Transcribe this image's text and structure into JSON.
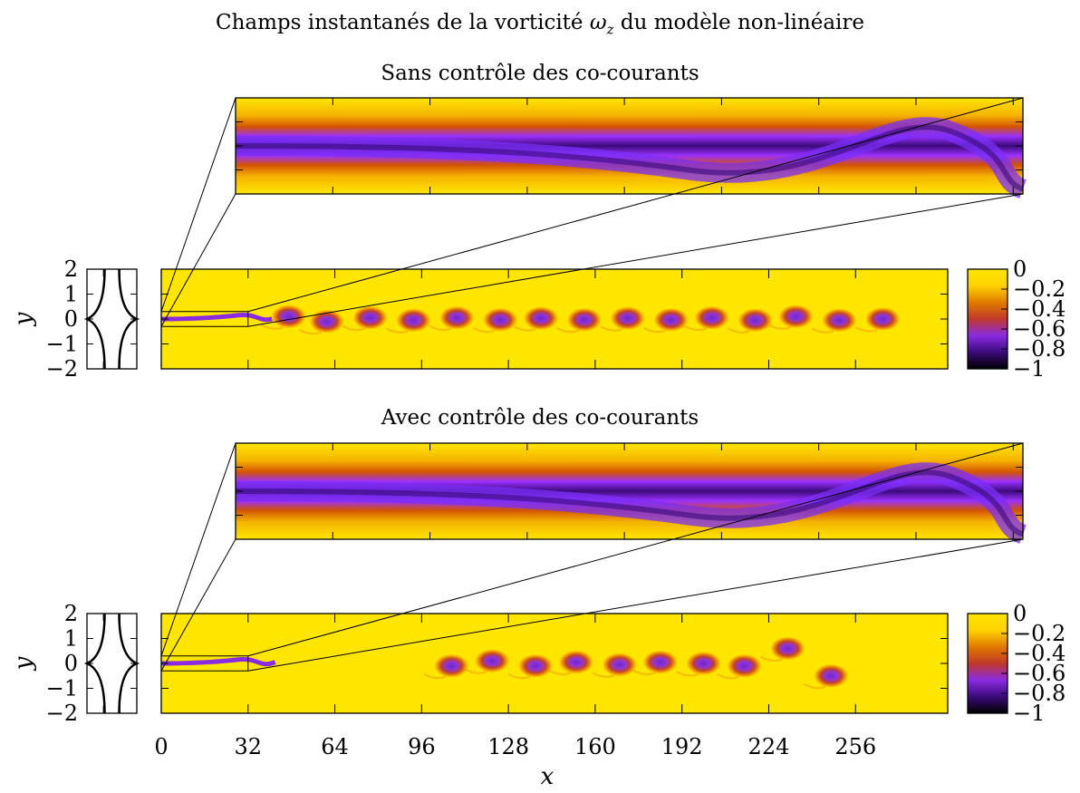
{
  "title": "Champs instantanés de la vorticité",
  "title_symbol": "ω",
  "title_subscript": "z",
  "title_suffix": "du modèle non-linéaire",
  "panels": [
    {
      "subtitle": "Sans contrôle des co-courants",
      "controlled": false
    },
    {
      "subtitle": "Avec contrôle des co-courants",
      "controlled": true
    }
  ],
  "colors": {
    "stops": [
      "#000000",
      "#3b0a7a",
      "#8a2be2",
      "#c0392b",
      "#e07b00",
      "#ffd200",
      "#ffe600"
    ]
  },
  "chart_data": [
    {
      "type": "heatmap",
      "title": "Sans contrôle des co-courants",
      "xlabel": "x",
      "ylabel": "y",
      "xlim": [
        0,
        290
      ],
      "ylim": [
        -2,
        2
      ],
      "xticks": [
        "0",
        "32",
        "64",
        "96",
        "128",
        "160",
        "192",
        "224",
        "256"
      ],
      "yticks": [
        "2",
        "1",
        "0",
        "−1",
        "−2"
      ],
      "colorbar": {
        "min": -1,
        "max": 0,
        "ticks": [
          "0",
          "−0.2",
          "−0.4",
          "−0.6",
          "−0.8",
          "−1"
        ]
      },
      "zoom_region": {
        "x": [
          0,
          32
        ],
        "y": [
          -0.3,
          0.3
        ]
      },
      "vortices": [
        {
          "x": 47,
          "y": 0.1
        },
        {
          "x": 61,
          "y": -0.1
        },
        {
          "x": 77,
          "y": 0.05
        },
        {
          "x": 93,
          "y": -0.05
        },
        {
          "x": 109,
          "y": 0.05
        },
        {
          "x": 125,
          "y": -0.03
        },
        {
          "x": 140,
          "y": 0.03
        },
        {
          "x": 156,
          "y": -0.03
        },
        {
          "x": 172,
          "y": 0.03
        },
        {
          "x": 188,
          "y": -0.03
        },
        {
          "x": 203,
          "y": 0.05
        },
        {
          "x": 219,
          "y": -0.05
        },
        {
          "x": 234,
          "y": 0.1
        },
        {
          "x": 250,
          "y": -0.05
        },
        {
          "x": 266,
          "y": 0.0
        }
      ]
    },
    {
      "type": "heatmap",
      "title": "Avec contrôle des co-courants",
      "xlabel": "x",
      "ylabel": "y",
      "xlim": [
        0,
        290
      ],
      "ylim": [
        -2,
        2
      ],
      "xticks": [
        "0",
        "32",
        "64",
        "96",
        "128",
        "160",
        "192",
        "224",
        "256"
      ],
      "yticks": [
        "2",
        "1",
        "0",
        "−1",
        "−2"
      ],
      "colorbar": {
        "min": -1,
        "max": 0,
        "ticks": [
          "0",
          "−0.2",
          "−0.4",
          "−0.6",
          "−0.8",
          "−1"
        ]
      },
      "zoom_region": {
        "x": [
          0,
          32
        ],
        "y": [
          -0.3,
          0.3
        ]
      },
      "vortices": [
        {
          "x": 107,
          "y": -0.1
        },
        {
          "x": 122,
          "y": 0.1
        },
        {
          "x": 138,
          "y": -0.1
        },
        {
          "x": 153,
          "y": 0.05
        },
        {
          "x": 169,
          "y": -0.05
        },
        {
          "x": 184,
          "y": 0.05
        },
        {
          "x": 200,
          "y": 0.0
        },
        {
          "x": 215,
          "y": -0.1
        },
        {
          "x": 231,
          "y": 0.6
        },
        {
          "x": 247,
          "y": -0.5
        }
      ]
    }
  ]
}
